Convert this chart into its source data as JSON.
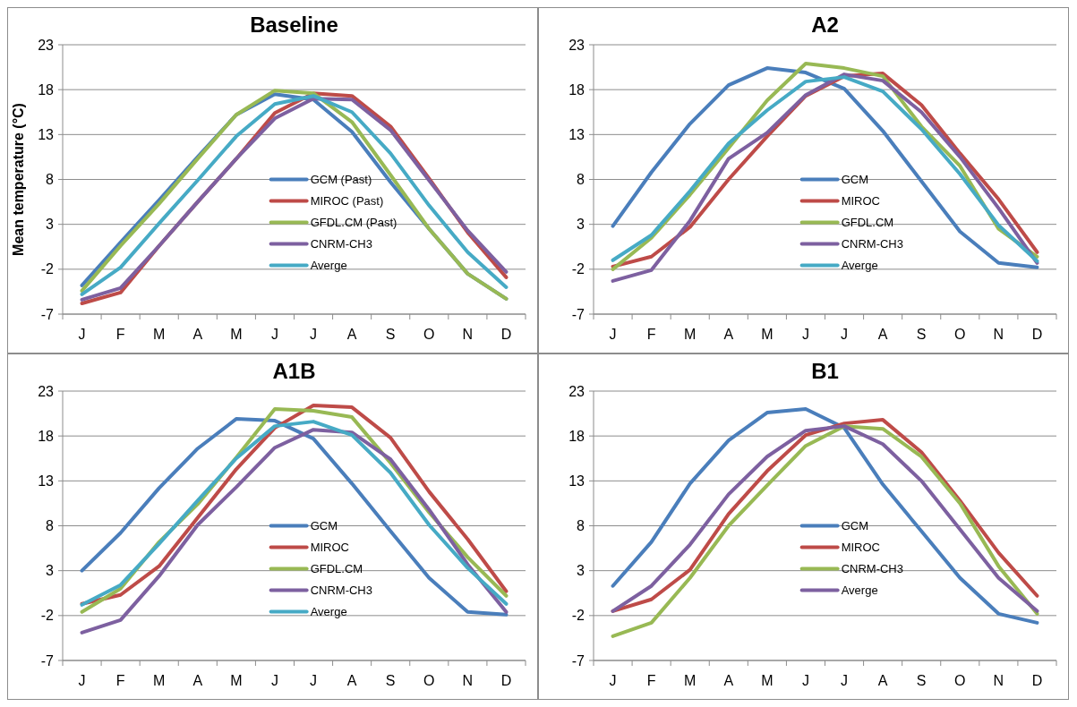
{
  "chart_data": [
    {
      "type": "line",
      "title": "Baseline",
      "ylabel": "Mean temperature (°C)",
      "categories": [
        "J",
        "F",
        "M",
        "A",
        "M",
        "J",
        "J",
        "A",
        "S",
        "O",
        "N",
        "D"
      ],
      "ylim": [
        -7,
        23
      ],
      "yticks": [
        -7,
        -2,
        3,
        8,
        13,
        18,
        23
      ],
      "grid": "y",
      "legend": "center",
      "line_style": "solid",
      "marker": "none",
      "series": [
        {
          "name": "GCM (Past)",
          "color": "#4a7ebb",
          "values": [
            -3.8,
            1.0,
            5.7,
            10.5,
            15.2,
            17.5,
            16.9,
            13.3,
            7.7,
            2.5,
            -2.5,
            -5.3
          ]
        },
        {
          "name": "MIROC (Past)",
          "color": "#be4b48",
          "values": [
            -5.8,
            -4.6,
            0.6,
            5.5,
            10.3,
            15.4,
            17.6,
            17.3,
            13.9,
            8.1,
            2.1,
            -2.9
          ]
        },
        {
          "name": "GFDL.CM (Past)",
          "color": "#98b954",
          "values": [
            -4.4,
            0.6,
            5.3,
            10.3,
            15.2,
            17.9,
            17.6,
            14.4,
            8.5,
            2.5,
            -2.5,
            -5.3
          ]
        },
        {
          "name": "CNRM-CH3",
          "color": "#7d60a0",
          "values": [
            -5.4,
            -4.1,
            0.6,
            5.5,
            10.3,
            14.8,
            17.0,
            16.9,
            13.5,
            7.9,
            2.3,
            -2.3
          ]
        },
        {
          "name": "Averge",
          "color": "#46aac5",
          "values": [
            -4.8,
            -1.8,
            3.1,
            7.9,
            12.8,
            16.4,
            17.3,
            15.5,
            10.9,
            5.1,
            -0.1,
            -4.0
          ]
        }
      ]
    },
    {
      "type": "line",
      "title": "A2",
      "categories": [
        "J",
        "F",
        "M",
        "A",
        "M",
        "J",
        "J",
        "A",
        "S",
        "O",
        "N",
        "D"
      ],
      "ylim": [
        -7,
        23
      ],
      "yticks": [
        -7,
        -2,
        3,
        8,
        13,
        18,
        23
      ],
      "grid": "y",
      "legend": "center",
      "line_style": "solid",
      "marker": "none",
      "series": [
        {
          "name": "GCM",
          "color": "#4a7ebb",
          "values": [
            2.8,
            8.8,
            14.2,
            18.5,
            20.4,
            19.9,
            18.1,
            13.4,
            7.8,
            2.2,
            -1.3,
            -1.8
          ]
        },
        {
          "name": "MIROC",
          "color": "#be4b48",
          "values": [
            -1.7,
            -0.6,
            2.7,
            8.0,
            12.8,
            17.3,
            19.5,
            19.8,
            16.3,
            10.9,
            5.8,
            -0.1
          ]
        },
        {
          "name": "GFDL.CM",
          "color": "#98b954",
          "values": [
            -2.0,
            1.5,
            6.3,
            11.5,
            16.8,
            20.9,
            20.4,
            19.5,
            13.9,
            9.5,
            2.5,
            -0.6
          ]
        },
        {
          "name": "CNRM-CH3",
          "color": "#7d60a0",
          "values": [
            -3.3,
            -2.1,
            3.4,
            10.3,
            13.2,
            17.4,
            19.7,
            19.0,
            15.5,
            10.5,
            4.8,
            -1.3
          ]
        },
        {
          "name": "Averge",
          "color": "#46aac5",
          "values": [
            -1.0,
            1.8,
            6.7,
            12.0,
            15.7,
            18.9,
            19.4,
            17.8,
            13.6,
            8.6,
            2.9,
            -1.1
          ]
        }
      ]
    },
    {
      "type": "line",
      "title": "A1B",
      "categories": [
        "J",
        "F",
        "M",
        "A",
        "M",
        "J",
        "J",
        "A",
        "S",
        "O",
        "N",
        "D"
      ],
      "ylim": [
        -7,
        23
      ],
      "yticks": [
        -7,
        -2,
        3,
        8,
        13,
        18,
        23
      ],
      "grid": "y",
      "legend": "center",
      "line_style": "solid",
      "marker": "none",
      "series": [
        {
          "name": "GCM",
          "color": "#4a7ebb",
          "values": [
            3.0,
            7.2,
            12.2,
            16.6,
            19.9,
            19.7,
            17.7,
            12.7,
            7.4,
            2.2,
            -1.6,
            -1.9
          ]
        },
        {
          "name": "MIROC",
          "color": "#be4b48",
          "values": [
            -0.7,
            0.3,
            3.5,
            8.9,
            14.3,
            18.9,
            21.4,
            21.2,
            17.8,
            11.8,
            6.5,
            0.7
          ]
        },
        {
          "name": "GFDL.CM",
          "color": "#98b954",
          "values": [
            -1.6,
            1.0,
            6.2,
            10.4,
            15.6,
            21.0,
            20.8,
            20.1,
            15.0,
            9.5,
            4.5,
            0.2
          ]
        },
        {
          "name": "CNRM-CH3",
          "color": "#7d60a0",
          "values": [
            -3.9,
            -2.5,
            2.4,
            8.1,
            12.3,
            16.7,
            18.7,
            18.4,
            15.4,
            9.8,
            3.7,
            -1.6
          ]
        },
        {
          "name": "Averge",
          "color": "#46aac5",
          "values": [
            -0.8,
            1.4,
            6.0,
            10.8,
            15.5,
            19.1,
            19.6,
            18.1,
            13.9,
            8.1,
            3.3,
            -0.7
          ]
        }
      ]
    },
    {
      "type": "line",
      "title": "B1",
      "categories": [
        "J",
        "F",
        "M",
        "A",
        "M",
        "J",
        "J",
        "A",
        "S",
        "O",
        "N",
        "D"
      ],
      "ylim": [
        -7,
        23
      ],
      "yticks": [
        -7,
        -2,
        3,
        8,
        13,
        18,
        23
      ],
      "grid": "y",
      "legend": "center",
      "line_style": "solid",
      "marker": "none",
      "series": [
        {
          "name": "GCM",
          "color": "#4a7ebb",
          "values": [
            1.3,
            6.2,
            12.7,
            17.5,
            20.6,
            21.0,
            18.9,
            12.6,
            7.4,
            2.2,
            -1.8,
            -2.8
          ]
        },
        {
          "name": "MIROC",
          "color": "#be4b48",
          "values": [
            -1.5,
            -0.2,
            3.1,
            9.3,
            14.1,
            18.1,
            19.4,
            19.8,
            16.2,
            10.8,
            5.0,
            0.2
          ]
        },
        {
          "name": "CNRM-CH3",
          "color": "#98b954",
          "values": [
            -4.3,
            -2.8,
            2.2,
            8.0,
            12.5,
            16.9,
            19.1,
            18.8,
            15.7,
            10.5,
            3.5,
            -1.8
          ]
        },
        {
          "name": "Averge",
          "color": "#7d60a0",
          "values": [
            -1.5,
            1.3,
            5.9,
            11.5,
            15.7,
            18.6,
            19.1,
            17.1,
            13.0,
            7.6,
            2.2,
            -1.5
          ]
        }
      ]
    }
  ]
}
